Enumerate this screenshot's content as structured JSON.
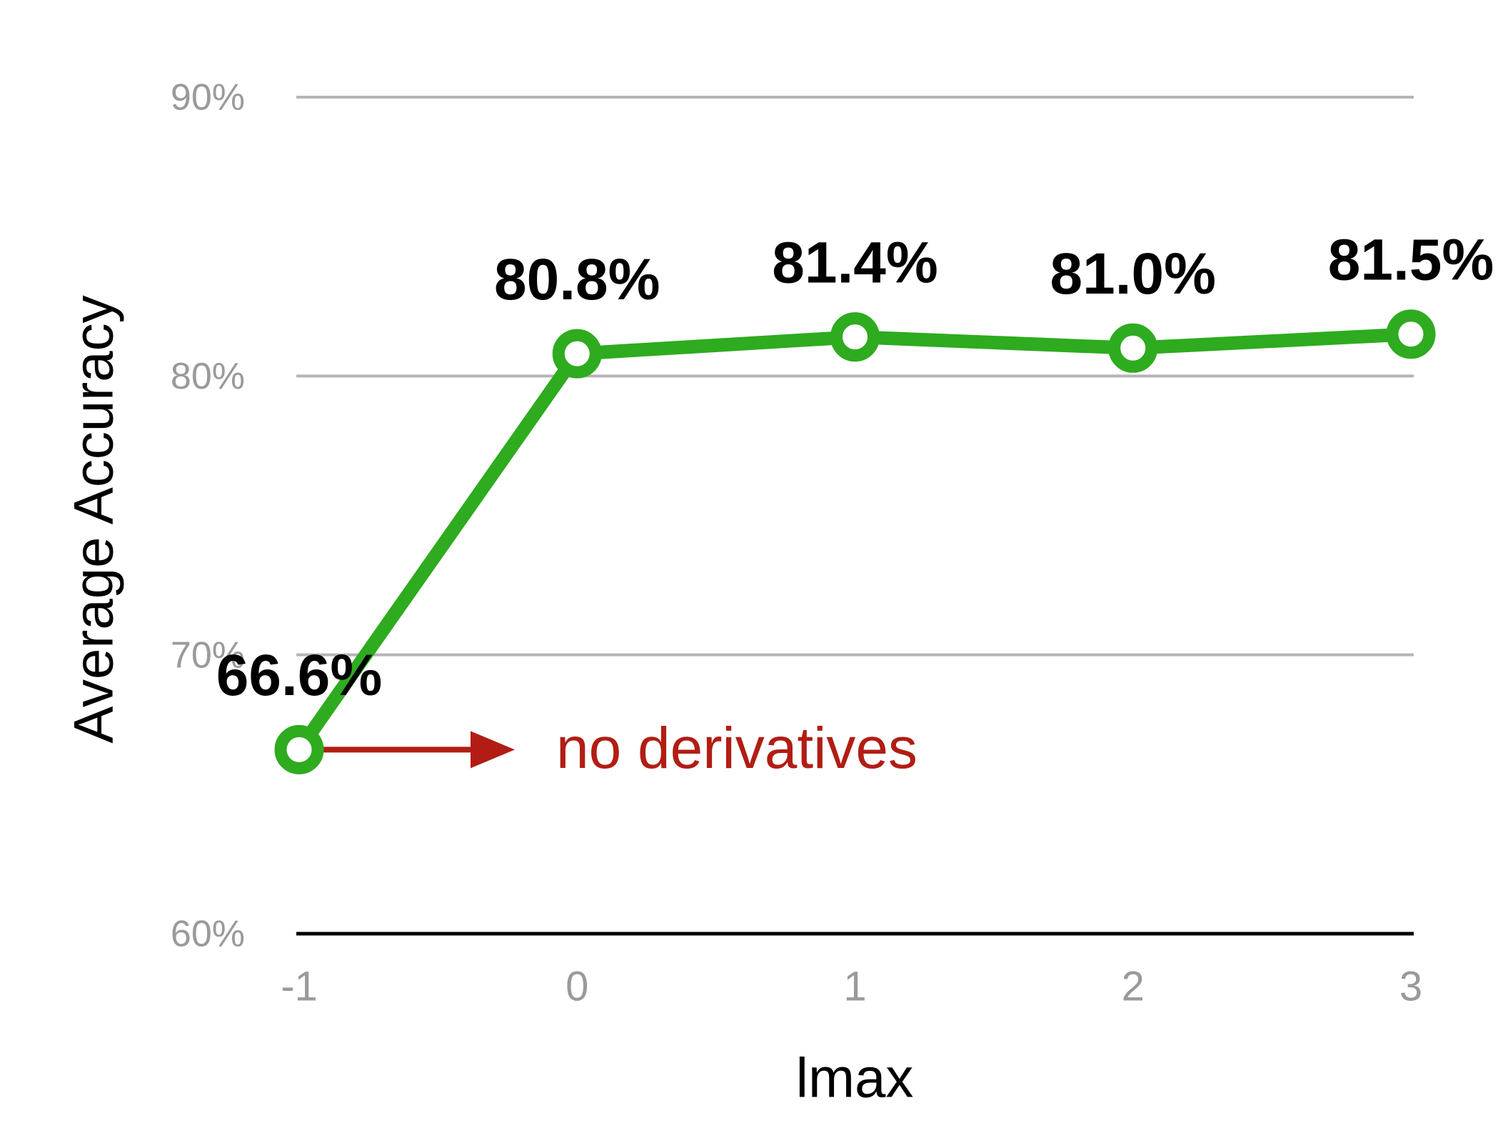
{
  "chart_data": {
    "type": "line",
    "x": [
      -1,
      0,
      1,
      2,
      3
    ],
    "values": [
      66.6,
      80.8,
      81.4,
      81.0,
      81.5
    ],
    "value_labels": [
      "66.6%",
      "80.8%",
      "81.4%",
      "81.0%",
      "81.5%"
    ],
    "color": "#2eab1f",
    "xlim": [
      -1,
      3
    ],
    "xticks": [
      -1,
      0,
      1,
      2,
      3
    ],
    "ylim": [
      60,
      90
    ],
    "yticks": [
      {
        "value": 60,
        "label": "60%"
      },
      {
        "value": 70,
        "label": "70%"
      },
      {
        "value": 80,
        "label": "80%"
      },
      {
        "value": 90,
        "label": "90%"
      }
    ],
    "grid": true,
    "x_label": "lmax",
    "y_label": "Average Accuracy",
    "annotation": "no derivatives"
  }
}
